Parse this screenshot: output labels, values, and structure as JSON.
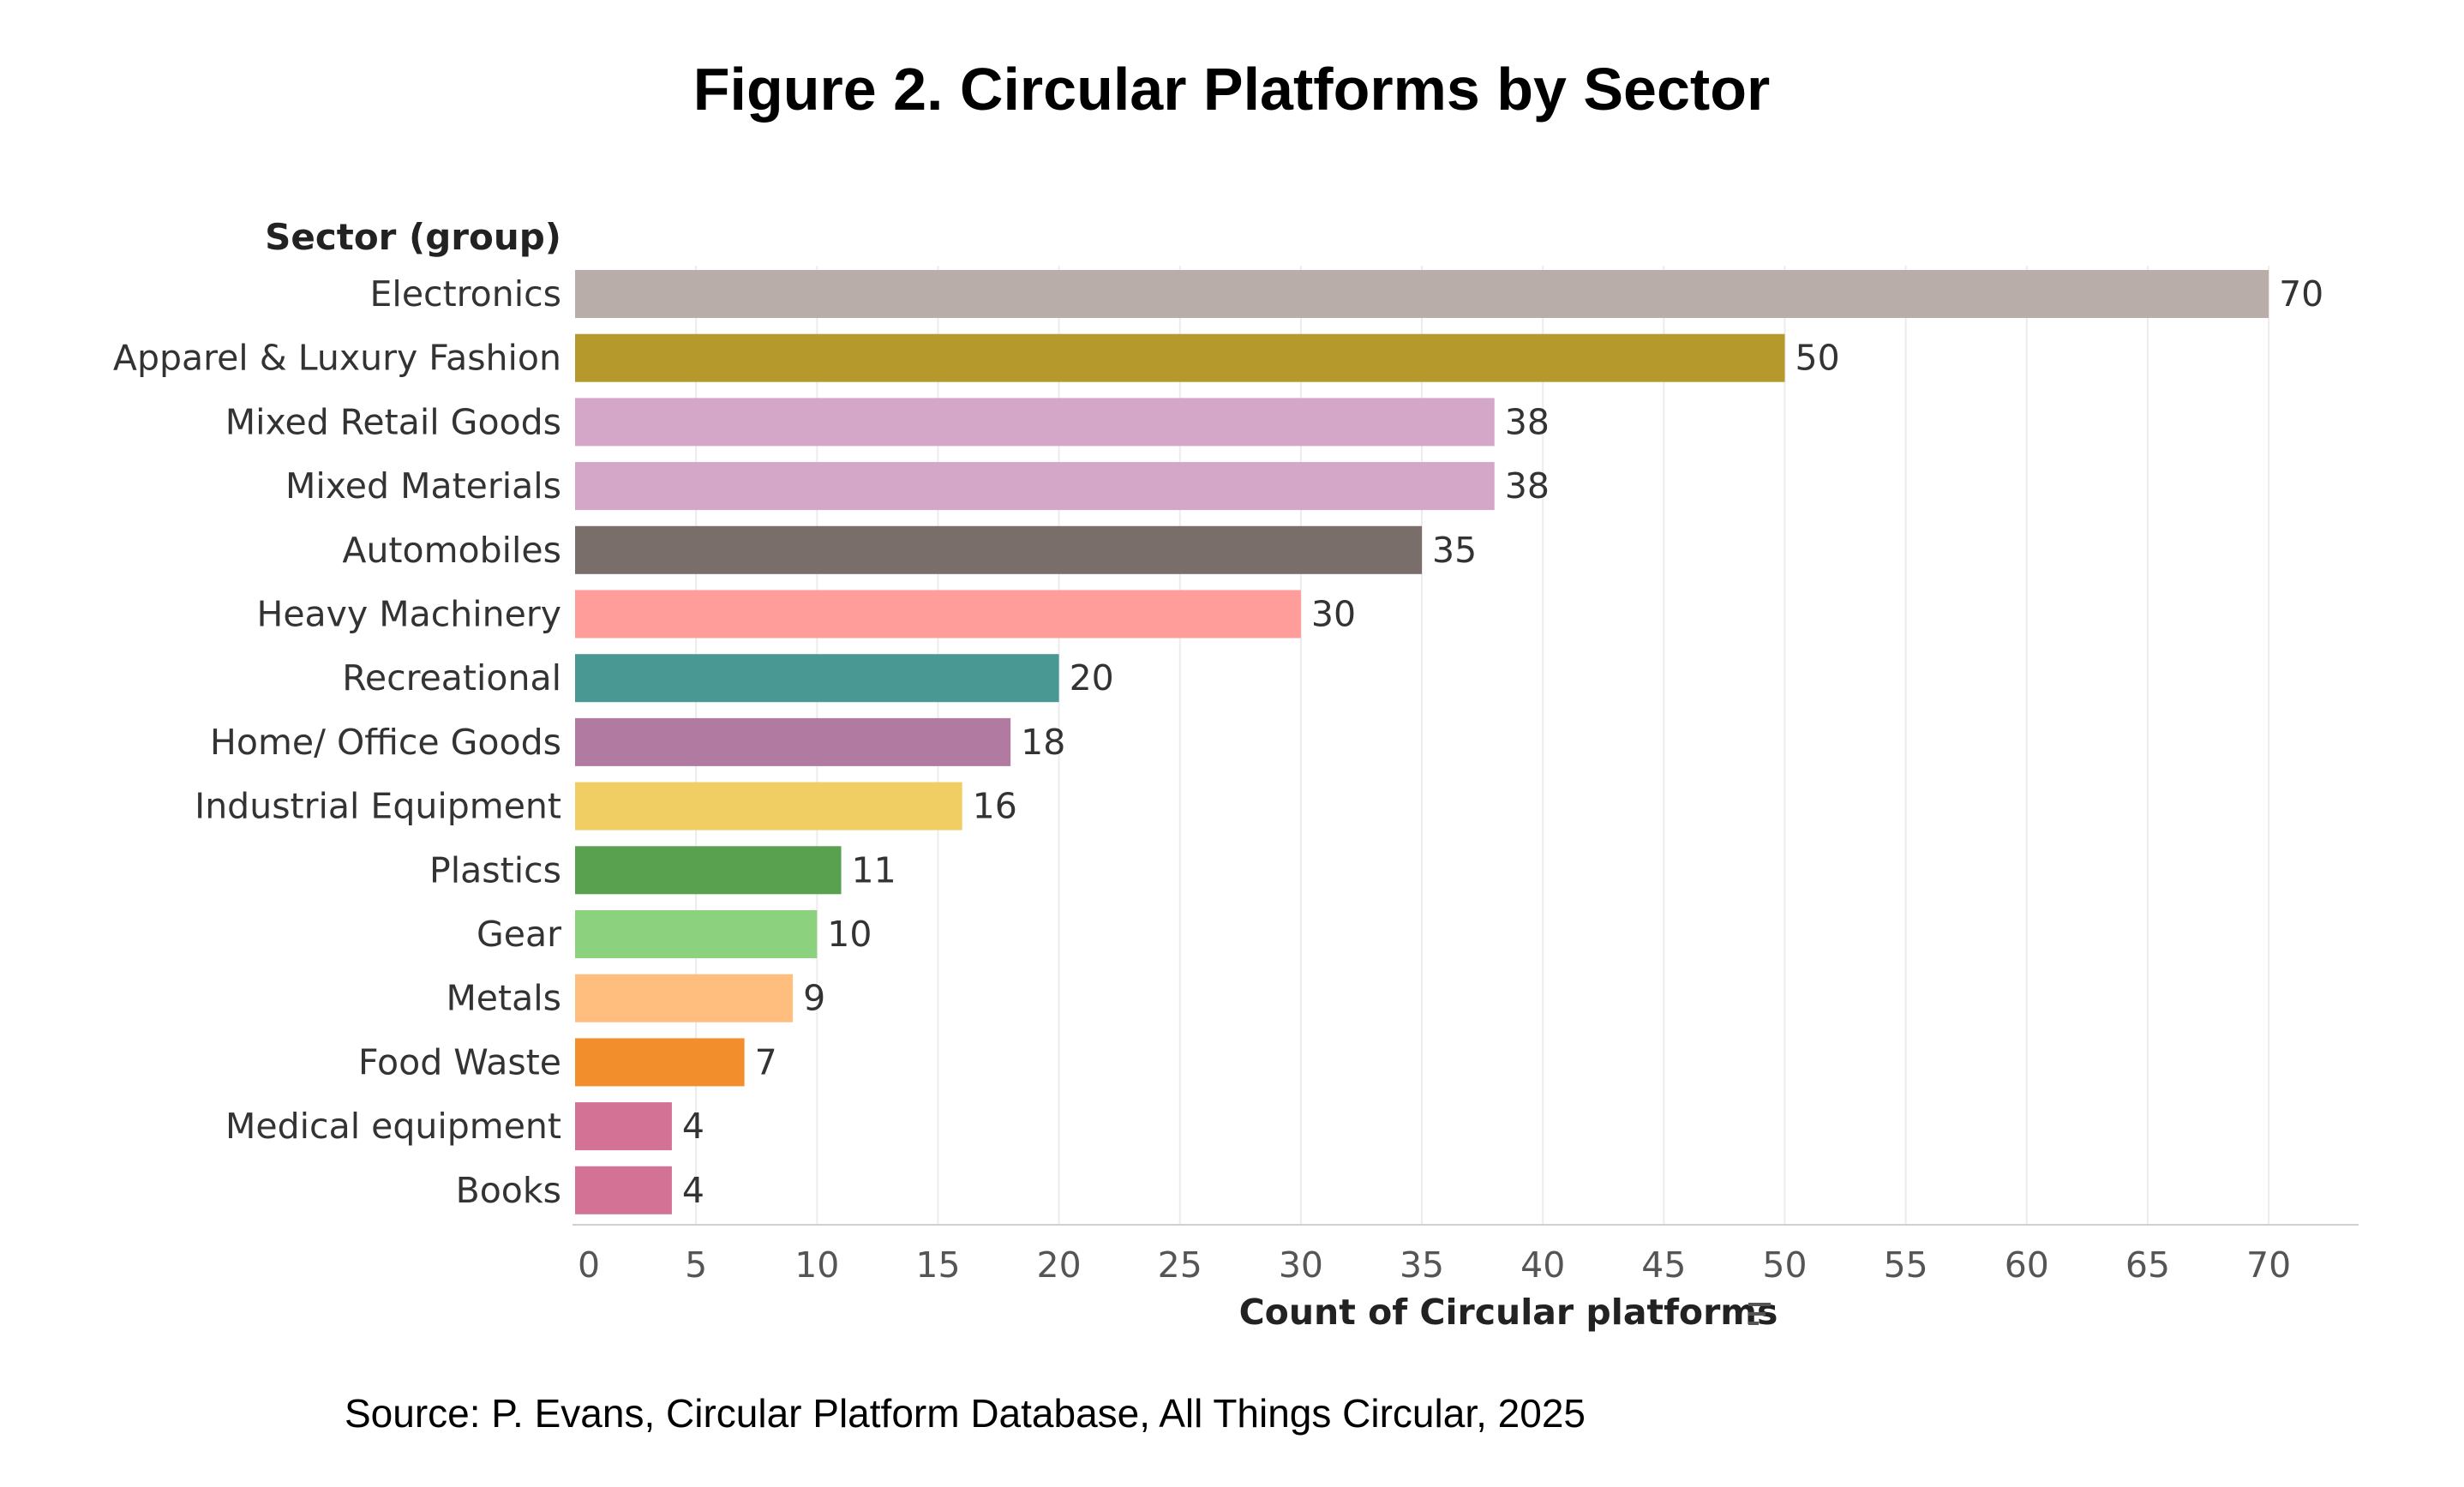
{
  "chart_data": {
    "type": "bar",
    "orientation": "horizontal",
    "title": "Figure 2. Circular Platforms by Sector",
    "category_header": "Sector (group)",
    "xlabel": "Count of Circular platforms",
    "ylabel": "Sector (group)",
    "xlim": [
      0,
      70
    ],
    "xticks": [
      0,
      5,
      10,
      15,
      20,
      25,
      30,
      35,
      40,
      45,
      50,
      55,
      60,
      65,
      70
    ],
    "grid": true,
    "sort_icon": "sort-descending-icon",
    "categories": [
      "Electronics",
      "Apparel & Luxury Fashion",
      "Mixed Retail Goods",
      "Mixed Materials",
      "Automobiles",
      "Heavy Machinery",
      "Recreational",
      "Home/ Office Goods",
      "Industrial Equipment",
      "Plastics",
      "Gear",
      "Metals",
      "Food Waste",
      "Medical equipment",
      "Books"
    ],
    "values": [
      70,
      50,
      38,
      38,
      35,
      30,
      20,
      18,
      16,
      11,
      10,
      9,
      7,
      4,
      4
    ],
    "colors": [
      "#b8ada8",
      "#b5992c",
      "#d4a6c8",
      "#d4a6c8",
      "#7a6e6b",
      "#ff9d9a",
      "#499894",
      "#b07aa1",
      "#f1ce63",
      "#59a14f",
      "#8cd17d",
      "#ffbe7d",
      "#f28e2b",
      "#d37295",
      "#d37295"
    ]
  },
  "source": "Source: P. Evans, Circular Platform Database, All Things Circular, 2025"
}
